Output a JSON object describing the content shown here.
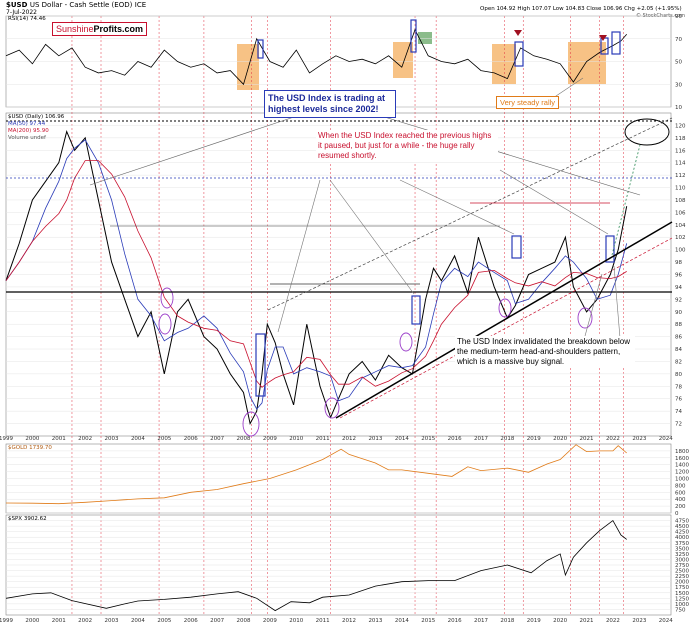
{
  "header": {
    "symbol": "$USD",
    "name": "US Dollar - Cash Settle (EOD)",
    "exchange": "ICE",
    "date": "7-Jul-2022",
    "ohlc": "Open 104.92  High 107.07  Low 104.83  Close 106.96  Chg +2.05 (+1.95%)",
    "credit": "© StockCharts.com"
  },
  "brand": {
    "part1": "Sunshine",
    "part2": "Profits.com"
  },
  "legends": {
    "rsi": "RSI(14) 74.46",
    "usd": "$USD (Daily) 106.96",
    "ma50": "MA(50) 97.44",
    "ma200": "MA(200) 95.90",
    "volume": "Volume undef",
    "gold": "$GOLD 1739.70",
    "spx": "$SPX 3902.62"
  },
  "annotations": {
    "a1": "The USD Index is trading at highest levels since 2002!",
    "a2": "When the USD Index reached the previous highs it paused, but just for a while - the huge rally resumed shortly.",
    "a3": "The USD Index invalidated the breakdown below the medium-term head-and-shoulders pattern, which is a massive buy signal.",
    "a4": "Very steady rally"
  },
  "colors": {
    "usd": "#000000",
    "ma50": "#2a3bb8",
    "ma200": "#c8102e",
    "gold": "#e07b18",
    "spx": "#000000",
    "rsi": "#000000",
    "highlight": "#f5b366"
  },
  "chart_data": [
    {
      "type": "line",
      "name": "RSI(14)",
      "ylim": [
        10,
        90
      ],
      "yticks": [
        10,
        30,
        50,
        70,
        90
      ],
      "xlim": [
        1999,
        2024.2
      ],
      "x": [
        1999,
        1999.5,
        2000,
        2000.5,
        2001,
        2001.5,
        2002,
        2002.5,
        2003,
        2003.5,
        2004,
        2004.5,
        2005,
        2005.5,
        2006,
        2006.5,
        2007,
        2007.5,
        2008,
        2008.5,
        2009,
        2009.5,
        2010,
        2010.5,
        2011,
        2011.5,
        2012,
        2012.5,
        2013,
        2013.5,
        2014,
        2014.5,
        2015,
        2015.5,
        2016,
        2016.5,
        2017,
        2017.5,
        2018,
        2018.5,
        2019,
        2019.5,
        2020,
        2020.5,
        2021,
        2021.5,
        2022,
        2022.3,
        2022.52
      ],
      "values": [
        55,
        60,
        48,
        65,
        55,
        62,
        45,
        40,
        42,
        38,
        50,
        45,
        60,
        50,
        45,
        48,
        40,
        42,
        30,
        70,
        50,
        45,
        60,
        40,
        48,
        55,
        50,
        52,
        48,
        55,
        45,
        78,
        55,
        50,
        48,
        52,
        42,
        40,
        35,
        62,
        55,
        52,
        48,
        32,
        50,
        58,
        64,
        68,
        74
      ]
    },
    {
      "type": "line",
      "name": "$USD",
      "ylim": [
        70,
        122
      ],
      "yticks": [
        72,
        74,
        76,
        78,
        80,
        82,
        84,
        86,
        88,
        90,
        92,
        94,
        96,
        98,
        100,
        102,
        104,
        106,
        108,
        110,
        112,
        114,
        116,
        118,
        120
      ],
      "xlim": [
        1999,
        2024.2
      ],
      "x": [
        1999,
        1999.5,
        2000,
        2000.5,
        2001,
        2001.3,
        2001.6,
        2002,
        2002.5,
        2003,
        2003.5,
        2004,
        2004.5,
        2005,
        2005.5,
        2005.9,
        2006.5,
        2007,
        2007.5,
        2008,
        2008.25,
        2008.5,
        2008.7,
        2008.9,
        2009.2,
        2009.5,
        2009.9,
        2010.4,
        2010.9,
        2011.3,
        2011.6,
        2012,
        2012.5,
        2013,
        2013.5,
        2014,
        2014.4,
        2014.9,
        2015.2,
        2015.5,
        2016,
        2016.5,
        2016.9,
        2017.5,
        2018,
        2018.3,
        2018.8,
        2019.3,
        2019.8,
        2020.2,
        2020.5,
        2021,
        2021.4,
        2021.9,
        2022.2,
        2022.52
      ],
      "values": [
        95,
        101,
        108,
        111,
        114,
        119,
        116,
        118,
        108,
        98,
        92,
        86,
        90,
        80,
        90,
        92,
        86,
        84,
        80,
        77,
        72,
        74,
        80,
        88,
        85,
        80,
        75,
        88,
        78,
        73,
        76,
        80,
        82,
        79,
        83,
        81,
        80,
        92,
        97,
        95,
        99,
        93,
        102,
        94,
        89,
        91,
        96,
        97,
        98,
        102,
        94,
        90,
        92,
        96,
        100,
        107
      ]
    },
    {
      "type": "line",
      "name": "$GOLD",
      "ylim": [
        0,
        2000
      ],
      "yticks": [
        0,
        200,
        400,
        600,
        800,
        1000,
        1200,
        1400,
        1600,
        1800
      ],
      "xlim": [
        1999,
        2024.2
      ],
      "x": [
        1999,
        2000,
        2001,
        2002,
        2003,
        2004,
        2005,
        2006,
        2007,
        2008,
        2009,
        2010,
        2011,
        2011.7,
        2012,
        2013,
        2013.5,
        2014,
        2015,
        2015.9,
        2016.5,
        2017,
        2018,
        2018.8,
        2019.5,
        2020,
        2020.6,
        2021,
        2021.5,
        2022,
        2022.2,
        2022.52
      ],
      "values": [
        290,
        285,
        270,
        310,
        360,
        410,
        440,
        600,
        680,
        850,
        1000,
        1250,
        1550,
        1850,
        1700,
        1450,
        1250,
        1250,
        1150,
        1060,
        1340,
        1230,
        1300,
        1180,
        1420,
        1550,
        1980,
        1780,
        1800,
        1800,
        1950,
        1740
      ]
    },
    {
      "type": "line",
      "name": "$SPX",
      "ylim": [
        500,
        5000
      ],
      "yticks": [
        750,
        1000,
        1250,
        1500,
        1750,
        2000,
        2250,
        2500,
        2750,
        3000,
        3250,
        3500,
        3750,
        4000,
        4250,
        4500,
        4750
      ],
      "xlim": [
        1999,
        2024.2
      ],
      "x": [
        1999,
        2000,
        2000.7,
        2001.5,
        2002.8,
        2003.5,
        2004,
        2005,
        2006,
        2007,
        2007.8,
        2008.5,
        2009.2,
        2009.8,
        2010.5,
        2011,
        2012,
        2013,
        2014,
        2015,
        2016,
        2017,
        2018,
        2018.9,
        2019.5,
        2020,
        2020.2,
        2020.5,
        2021,
        2021.5,
        2022,
        2022.3,
        2022.52
      ],
      "values": [
        1250,
        1450,
        1500,
        1150,
        800,
        1000,
        1130,
        1200,
        1300,
        1450,
        1550,
        1250,
        700,
        1100,
        1050,
        1300,
        1400,
        1800,
        2000,
        2050,
        2050,
        2500,
        2750,
        2400,
        2950,
        3250,
        2300,
        3100,
        3750,
        4300,
        4750,
        4100,
        3900
      ]
    }
  ],
  "xaxis_labels": [
    "1999",
    "2000",
    "2001",
    "2002",
    "2003",
    "2004",
    "2005",
    "2006",
    "2007",
    "2008",
    "2009",
    "2010",
    "2011",
    "2012",
    "2013",
    "2014",
    "2015",
    "2016",
    "2017",
    "2018",
    "2019",
    "2020",
    "2021",
    "2022",
    "2023",
    "2024"
  ]
}
